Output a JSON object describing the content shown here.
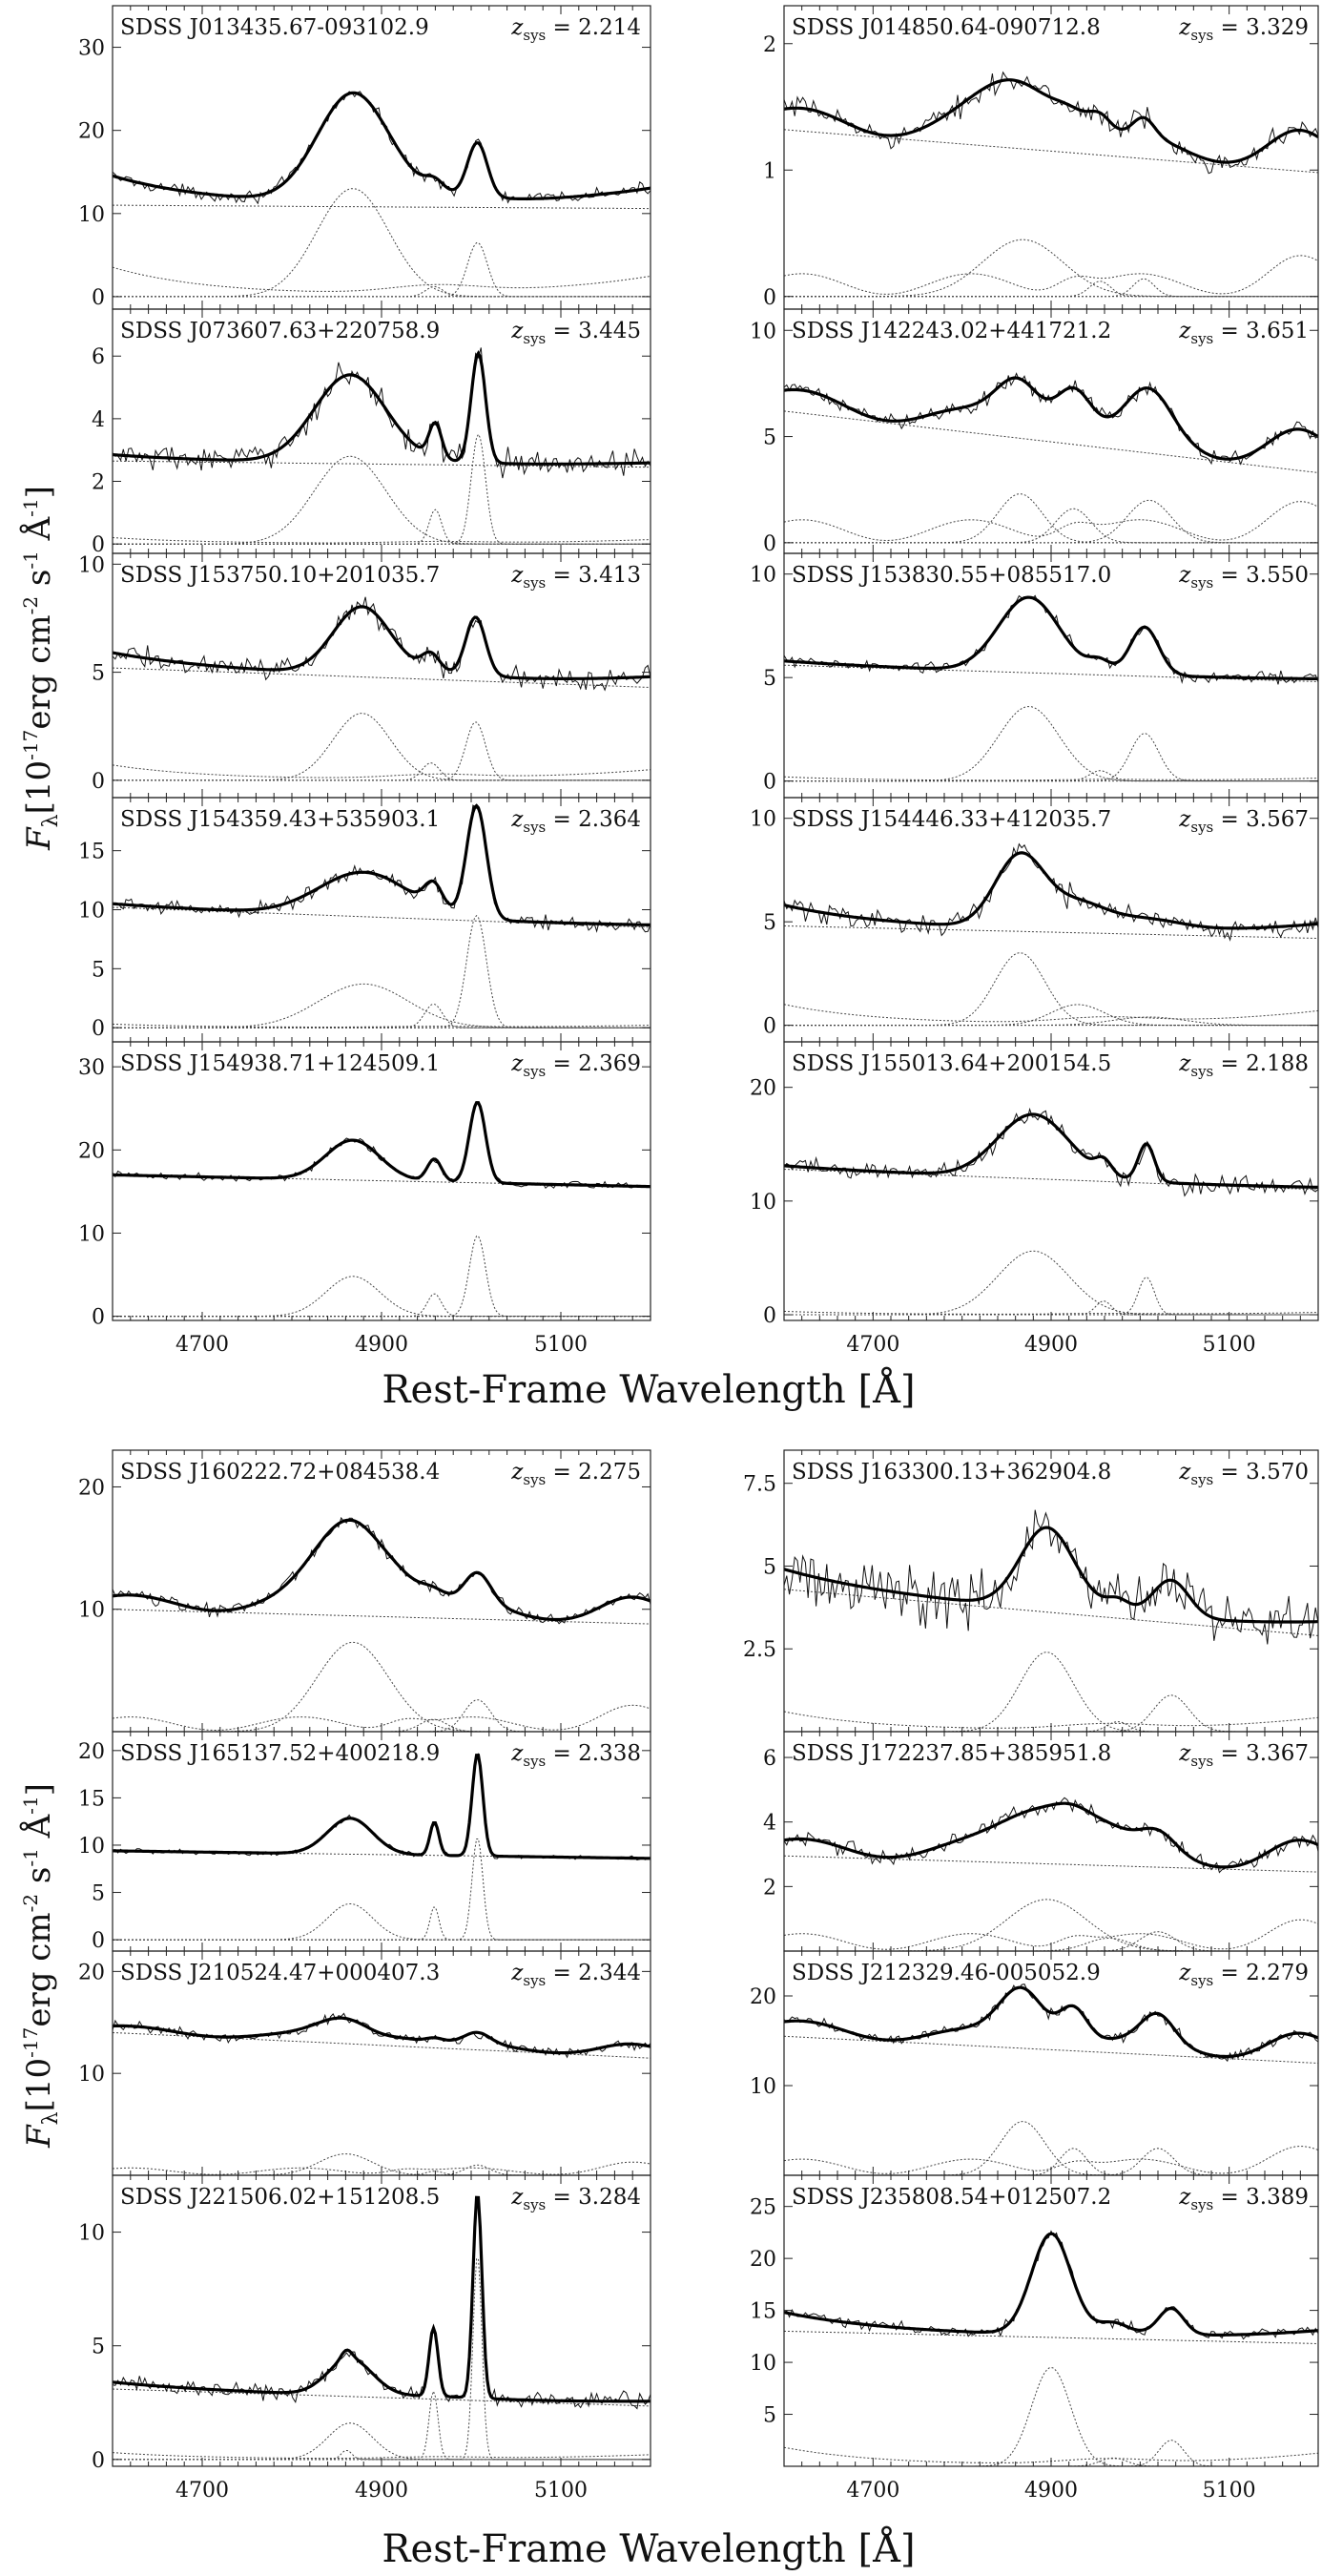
{
  "figure": {
    "ylabel_parts": {
      "main": "F",
      "sub": "λ",
      "rest": "[10",
      "exp1": "-17",
      "unit1": "erg cm",
      "exp2": "-2",
      "unit2": " s",
      "exp3": "-1",
      "unit3": " Å",
      "exp4": "-1",
      "close": "]"
    },
    "xlabel": "Rest-Frame Wavelength [Å]",
    "z_prefix": "z",
    "z_sub": "sys",
    "z_eq": " = "
  },
  "colors": {
    "frame": "#222222",
    "data": "#111111",
    "model": "#000000",
    "component": "#444444"
  },
  "chart_data": [
    {
      "type": "line",
      "name": "SDSS J013435.67-093102.9",
      "z_label": "2.214",
      "zsys": 2.214,
      "xlim": [
        4600,
        5200
      ],
      "xticks": [
        4700,
        4900,
        5100
      ],
      "ylim": [
        -1.5,
        35
      ],
      "yticks": [
        0,
        10,
        20,
        30
      ],
      "continuum": [
        11.0,
        10.6
      ],
      "broad_hb": {
        "center": 4868,
        "amp": 13.0,
        "sigma": 40
      },
      "hb_narrow": {
        "center": 4861,
        "amp": 0,
        "sigma": 5
      },
      "oiii_4959": {
        "center": 4959,
        "amp": 1.2,
        "sigma": 10
      },
      "oiii_5007": {
        "center": 5007,
        "amp": 6.5,
        "sigma": 11
      },
      "feii": {
        "amp": 3.5,
        "shape": "edges"
      },
      "noise": 0.6
    },
    {
      "type": "line",
      "name": "SDSS J014850.64-090712.8",
      "z_label": "3.329",
      "zsys": 3.329,
      "xlim": [
        4600,
        5200
      ],
      "xticks": [
        4700,
        4900,
        5100
      ],
      "ylim": [
        -0.1,
        2.3
      ],
      "yticks": [
        0,
        1,
        2
      ],
      "continuum": [
        1.32,
        0.98
      ],
      "broad_hb": {
        "center": 4868,
        "amp": 0.45,
        "sigma": 45
      },
      "hb_narrow": {
        "center": 4861,
        "amp": 0,
        "sigma": 5
      },
      "oiii_4959": {
        "center": 4955,
        "amp": 0.12,
        "sigma": 12
      },
      "oiii_5007": {
        "center": 5004,
        "amp": 0.14,
        "sigma": 12
      },
      "feii": {
        "amp": 0.3,
        "shape": "bumps"
      },
      "noise": 0.07
    },
    {
      "type": "line",
      "name": "SDSS J073607.63+220758.9",
      "z_label": "3.445",
      "zsys": 3.445,
      "xlim": [
        4600,
        5200
      ],
      "xticks": [
        4700,
        4900,
        5100
      ],
      "ylim": [
        -0.3,
        7.5
      ],
      "yticks": [
        0,
        2,
        4,
        6
      ],
      "continuum": [
        2.65,
        2.45
      ],
      "broad_hb": {
        "center": 4865,
        "amp": 2.8,
        "sigma": 40
      },
      "hb_narrow": {
        "center": 4861,
        "amp": 0,
        "sigma": 5
      },
      "oiii_4959": {
        "center": 4960,
        "amp": 1.1,
        "sigma": 7
      },
      "oiii_5007": {
        "center": 5008,
        "amp": 3.5,
        "sigma": 8
      },
      "feii": {
        "amp": 0.2,
        "shape": "edges"
      },
      "noise": 0.35
    },
    {
      "type": "line",
      "name": "SDSS J142243.02+441721.2",
      "z_label": "3.651",
      "zsys": 3.651,
      "xlim": [
        4600,
        5200
      ],
      "xticks": [
        4700,
        4900,
        5100
      ],
      "ylim": [
        -0.5,
        11
      ],
      "yticks": [
        0,
        5,
        10
      ],
      "continuum": [
        6.2,
        3.3
      ],
      "broad_hb": {
        "center": 4865,
        "amp": 2.3,
        "sigma": 25
      },
      "hb_narrow": {
        "center": 4861,
        "amp": 0,
        "sigma": 5
      },
      "oiii_4959": {
        "center": 4925,
        "amp": 1.6,
        "sigma": 20
      },
      "oiii_5007": {
        "center": 5010,
        "amp": 2.0,
        "sigma": 25
      },
      "feii": {
        "amp": 1.8,
        "shape": "bumps"
      },
      "noise": 0.3
    },
    {
      "type": "line",
      "name": "SDSS J153750.10+201035.7",
      "z_label": "3.413",
      "zsys": 3.413,
      "xlim": [
        4600,
        5200
      ],
      "xticks": [
        4700,
        4900,
        5100
      ],
      "ylim": [
        -0.8,
        10.5
      ],
      "yticks": [
        0,
        5,
        10
      ],
      "continuum": [
        5.2,
        4.3
      ],
      "broad_hb": {
        "center": 4878,
        "amp": 3.1,
        "sigma": 32
      },
      "hb_narrow": {
        "center": 4861,
        "amp": 0,
        "sigma": 5
      },
      "oiii_4959": {
        "center": 4955,
        "amp": 0.8,
        "sigma": 10
      },
      "oiii_5007": {
        "center": 5005,
        "amp": 2.7,
        "sigma": 11
      },
      "feii": {
        "amp": 0.7,
        "shape": "edges"
      },
      "noise": 0.4
    },
    {
      "type": "line",
      "name": "SDSS J153830.55+085517.0",
      "z_label": "3.550",
      "zsys": 3.55,
      "xlim": [
        4600,
        5200
      ],
      "xticks": [
        4700,
        4900,
        5100
      ],
      "ylim": [
        -0.8,
        11
      ],
      "yticks": [
        0,
        5,
        10
      ],
      "continuum": [
        5.6,
        4.8
      ],
      "broad_hb": {
        "center": 4875,
        "amp": 3.6,
        "sigma": 34
      },
      "hb_narrow": {
        "center": 4861,
        "amp": 0,
        "sigma": 5
      },
      "oiii_4959": {
        "center": 4955,
        "amp": 0.5,
        "sigma": 12
      },
      "oiii_5007": {
        "center": 5005,
        "amp": 2.3,
        "sigma": 16
      },
      "feii": {
        "amp": 0.2,
        "shape": "edges"
      },
      "noise": 0.25
    },
    {
      "type": "line",
      "name": "SDSS J154359.43+535903.1",
      "z_label": "2.364",
      "zsys": 2.364,
      "xlim": [
        4600,
        5200
      ],
      "xticks": [
        4700,
        4900,
        5100
      ],
      "ylim": [
        -1.2,
        19.5
      ],
      "yticks": [
        0,
        5,
        10,
        15
      ],
      "continuum": [
        10.2,
        8.5
      ],
      "broad_hb": {
        "center": 4880,
        "amp": 3.7,
        "sigma": 50
      },
      "hb_narrow": {
        "center": 4861,
        "amp": 0,
        "sigma": 5
      },
      "oiii_4959": {
        "center": 4958,
        "amp": 2.0,
        "sigma": 10
      },
      "oiii_5007": {
        "center": 5006,
        "amp": 9.5,
        "sigma": 11
      },
      "feii": {
        "amp": 0.3,
        "shape": "edges"
      },
      "noise": 0.5
    },
    {
      "type": "line",
      "name": "SDSS J154446.33+412035.7",
      "z_label": "3.567",
      "zsys": 3.567,
      "xlim": [
        4600,
        5200
      ],
      "xticks": [
        4700,
        4900,
        5100
      ],
      "ylim": [
        -0.8,
        11
      ],
      "yticks": [
        0,
        5,
        10
      ],
      "continuum": [
        4.8,
        4.2
      ],
      "broad_hb": {
        "center": 4865,
        "amp": 3.5,
        "sigma": 28
      },
      "hb_narrow": {
        "center": 4861,
        "amp": 0,
        "sigma": 5
      },
      "oiii_4959": {
        "center": 4930,
        "amp": 1.0,
        "sigma": 30
      },
      "oiii_5007": {
        "center": 5010,
        "amp": 0.4,
        "sigma": 40
      },
      "feii": {
        "amp": 1.0,
        "shape": "edges"
      },
      "noise": 0.45
    },
    {
      "type": "line",
      "name": "SDSS J154938.71+124509.1",
      "z_label": "2.369",
      "zsys": 2.369,
      "xlim": [
        4600,
        5200
      ],
      "xticks": [
        4700,
        4900,
        5100
      ],
      "ylim": [
        -0.5,
        33
      ],
      "yticks": [
        0,
        10,
        20,
        30
      ],
      "continuum": [
        17.0,
        15.6
      ],
      "broad_hb": {
        "center": 4868,
        "amp": 4.8,
        "sigma": 30
      },
      "hb_narrow": {
        "center": 4861,
        "amp": 0,
        "sigma": 5
      },
      "oiii_4959": {
        "center": 4959,
        "amp": 2.7,
        "sigma": 8
      },
      "oiii_5007": {
        "center": 5007,
        "amp": 9.7,
        "sigma": 9
      },
      "feii": {
        "amp": 0,
        "shape": "edges"
      },
      "noise": 0.35
    },
    {
      "type": "line",
      "name": "SDSS J155013.64+200154.5",
      "z_label": "2.188",
      "zsys": 2.188,
      "xlim": [
        4600,
        5200
      ],
      "xticks": [
        4700,
        4900,
        5100
      ],
      "ylim": [
        -0.5,
        24
      ],
      "yticks": [
        0,
        10,
        20
      ],
      "continuum": [
        12.8,
        11.0
      ],
      "broad_hb": {
        "center": 4880,
        "amp": 5.6,
        "sigma": 40
      },
      "hb_narrow": {
        "center": 4861,
        "amp": 0,
        "sigma": 5
      },
      "oiii_4959": {
        "center": 4959,
        "amp": 1.2,
        "sigma": 9
      },
      "oiii_5007": {
        "center": 5007,
        "amp": 3.3,
        "sigma": 9
      },
      "feii": {
        "amp": 0.3,
        "shape": "edges"
      },
      "noise": 0.7
    },
    {
      "type": "line",
      "name": "SDSS J160222.72+084538.4",
      "z_label": "2.275",
      "zsys": 2.275,
      "xlim": [
        4600,
        5200
      ],
      "xticks": [
        4700,
        4900,
        5100
      ],
      "ylim": [
        0,
        23
      ],
      "yticks": [
        10,
        20
      ],
      "continuum": [
        10.0,
        8.8
      ],
      "broad_hb": {
        "center": 4868,
        "amp": 7.3,
        "sigma": 40
      },
      "hb_narrow": {
        "center": 4861,
        "amp": 0,
        "sigma": 5
      },
      "oiii_4959": {
        "center": 4958,
        "amp": 1.0,
        "sigma": 15
      },
      "oiii_5007": {
        "center": 5007,
        "amp": 2.6,
        "sigma": 15
      },
      "feii": {
        "amp": 2.0,
        "shape": "bumps"
      },
      "noise": 0.4
    },
    {
      "type": "line",
      "name": "SDSS J163300.13+362904.8",
      "z_label": "3.570",
      "zsys": 3.57,
      "xlim": [
        4600,
        5200
      ],
      "xticks": [
        4700,
        4900,
        5100
      ],
      "ylim": [
        0,
        8.5
      ],
      "yticks": [
        2.5,
        5,
        7.5
      ],
      "continuum": [
        4.3,
        2.9
      ],
      "broad_hb": {
        "center": 4895,
        "amp": 2.4,
        "sigma": 30
      },
      "hb_narrow": {
        "center": 4861,
        "amp": 0,
        "sigma": 5
      },
      "oiii_4959": {
        "center": 4975,
        "amp": 0.3,
        "sigma": 12
      },
      "oiii_5007": {
        "center": 5035,
        "amp": 1.1,
        "sigma": 20
      },
      "feii": {
        "amp": 0.6,
        "shape": "edges"
      },
      "noise": 0.7
    },
    {
      "type": "line",
      "name": "SDSS J165137.52+400218.9",
      "z_label": "2.338",
      "zsys": 2.338,
      "xlim": [
        4600,
        5200
      ],
      "xticks": [
        4700,
        4900,
        5100
      ],
      "ylim": [
        -1.2,
        22
      ],
      "yticks": [
        0,
        5,
        10,
        15,
        20
      ],
      "continuum": [
        9.4,
        8.6
      ],
      "broad_hb": {
        "center": 4865,
        "amp": 3.8,
        "sigma": 25
      },
      "hb_narrow": {
        "center": 4861,
        "amp": 0,
        "sigma": 5
      },
      "oiii_4959": {
        "center": 4959,
        "amp": 3.5,
        "sigma": 5
      },
      "oiii_5007": {
        "center": 5007,
        "amp": 10.8,
        "sigma": 6
      },
      "feii": {
        "amp": 0,
        "shape": "edges"
      },
      "noise": 0.2
    },
    {
      "type": "line",
      "name": "SDSS J172237.85+385951.8",
      "z_label": "3.367",
      "zsys": 3.367,
      "xlim": [
        4600,
        5200
      ],
      "xticks": [
        4700,
        4900,
        5100
      ],
      "ylim": [
        0,
        6.8
      ],
      "yticks": [
        2,
        4,
        6
      ],
      "continuum": [
        2.95,
        2.45
      ],
      "broad_hb": {
        "center": 4895,
        "amp": 1.6,
        "sigma": 45
      },
      "hb_narrow": {
        "center": 4861,
        "amp": 0,
        "sigma": 5
      },
      "oiii_4959": {
        "center": 4965,
        "amp": 0.4,
        "sigma": 25
      },
      "oiii_5007": {
        "center": 5020,
        "amp": 0.6,
        "sigma": 20
      },
      "feii": {
        "amp": 0.9,
        "shape": "bumps"
      },
      "noise": 0.2
    },
    {
      "type": "line",
      "name": "SDSS J210524.47+000407.3",
      "z_label": "2.344",
      "zsys": 2.344,
      "xlim": [
        4600,
        5200
      ],
      "xticks": [
        4700,
        4900,
        5100
      ],
      "ylim": [
        0,
        22
      ],
      "yticks": [
        10,
        20
      ],
      "continuum": [
        14.0,
        11.5
      ],
      "broad_hb": {
        "center": 4860,
        "amp": 2.1,
        "sigma": 30
      },
      "hb_narrow": {
        "center": 4861,
        "amp": 0,
        "sigma": 5
      },
      "oiii_4959": {
        "center": 4959,
        "amp": 0.4,
        "sigma": 10
      },
      "oiii_5007": {
        "center": 5007,
        "amp": 1.0,
        "sigma": 14
      },
      "feii": {
        "amp": 1.2,
        "shape": "bumps"
      },
      "noise": 0.4
    },
    {
      "type": "line",
      "name": "SDSS J212329.46-005052.9",
      "z_label": "2.279",
      "zsys": 2.279,
      "xlim": [
        4600,
        5200
      ],
      "xticks": [
        4700,
        4900,
        5100
      ],
      "ylim": [
        0,
        25
      ],
      "yticks": [
        10,
        20
      ],
      "continuum": [
        15.5,
        12.5
      ],
      "broad_hb": {
        "center": 4868,
        "amp": 6.0,
        "sigma": 25
      },
      "hb_narrow": {
        "center": 4861,
        "amp": 0,
        "sigma": 5
      },
      "oiii_4959": {
        "center": 4925,
        "amp": 3.0,
        "sigma": 15
      },
      "oiii_5007": {
        "center": 5020,
        "amp": 3.0,
        "sigma": 18
      },
      "feii": {
        "amp": 3.0,
        "shape": "bumps"
      },
      "noise": 0.5
    },
    {
      "type": "line",
      "name": "SDSS J221506.02+151208.5",
      "z_label": "3.284",
      "zsys": 3.284,
      "xlim": [
        4600,
        5200
      ],
      "xticks": [
        4700,
        4900,
        5100
      ],
      "ylim": [
        -0.3,
        12.5
      ],
      "yticks": [
        0,
        5,
        10
      ],
      "continuum": [
        3.1,
        2.35
      ],
      "broad_hb": {
        "center": 4865,
        "amp": 1.6,
        "sigma": 25
      },
      "hb_narrow": {
        "center": 4861,
        "amp": 0.4,
        "sigma": 6
      },
      "oiii_4959": {
        "center": 4958,
        "amp": 3.0,
        "sigma": 5
      },
      "oiii_5007": {
        "center": 5007,
        "amp": 9.0,
        "sigma": 5
      },
      "feii": {
        "amp": 0.3,
        "shape": "edges"
      },
      "noise": 0.3
    },
    {
      "type": "line",
      "name": "SDSS J235808.54+012507.2",
      "z_label": "3.389",
      "zsys": 3.389,
      "xlim": [
        4600,
        5200
      ],
      "xticks": [
        4700,
        4900,
        5100
      ],
      "ylim": [
        0,
        28
      ],
      "yticks": [
        5,
        10,
        15,
        20,
        25
      ],
      "continuum": [
        13.0,
        11.8
      ],
      "broad_hb": {
        "center": 4900,
        "amp": 9.5,
        "sigma": 22
      },
      "hb_narrow": {
        "center": 4861,
        "amp": 0,
        "sigma": 5
      },
      "oiii_4959": {
        "center": 4970,
        "amp": 0.8,
        "sigma": 15
      },
      "oiii_5007": {
        "center": 5035,
        "amp": 2.5,
        "sigma": 14
      },
      "feii": {
        "amp": 1.8,
        "shape": "edges"
      },
      "noise": 0.4
    }
  ]
}
